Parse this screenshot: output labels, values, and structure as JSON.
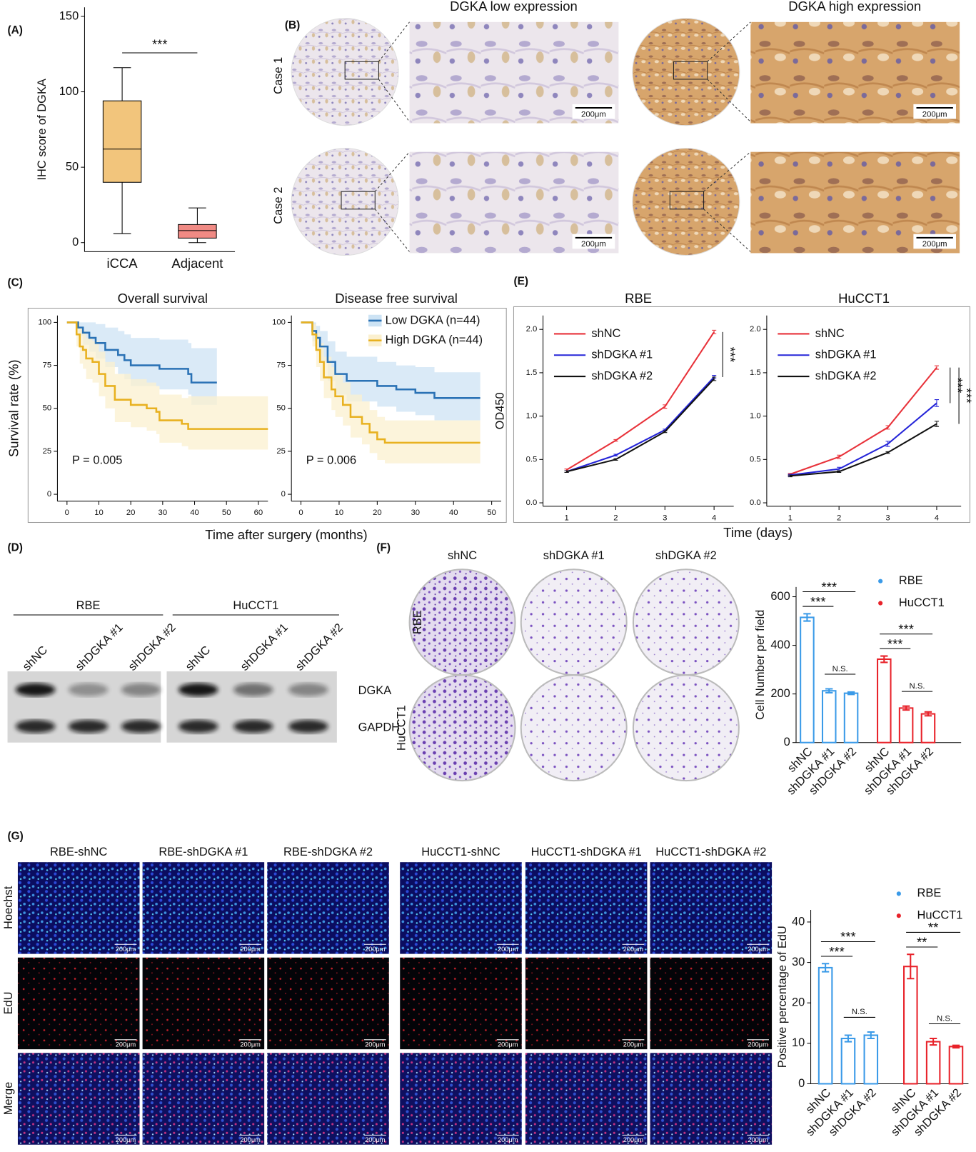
{
  "panel_labels": [
    "(A)",
    "(B)",
    "(C)",
    "(D)",
    "(E)",
    "(F)",
    "(G)"
  ],
  "ihc": {
    "columns": [
      "DGKA low expression",
      "DGKA high expression"
    ],
    "rows": [
      "Case 1",
      "Case 2"
    ],
    "scale_bar": "200μm"
  },
  "western": {
    "cell_lines": [
      "RBE",
      "HuCCT1"
    ],
    "lanes": [
      "shNC",
      "shDGKA #1",
      "shDGKA #2"
    ],
    "proteins": [
      "DGKA",
      "GAPDH"
    ]
  },
  "colony": {
    "columns": [
      "shNC",
      "shDGKA #1",
      "shDGKA #2"
    ],
    "rows": [
      "RBE",
      "HuCCT1"
    ]
  },
  "edu": {
    "columns": [
      "RBE-shNC",
      "RBE-shDGKA #1",
      "RBE-shDGKA #2",
      "HuCCT1-shNC",
      "HuCCT1-shDGKA #1",
      "HuCCT1-shDGKA #2"
    ],
    "rows": [
      "Hoechst",
      "EdU",
      "Merge"
    ],
    "scale_bar": "200μm"
  },
  "chart_data": [
    {
      "type": "box",
      "ylabel": "IHC score of DGKA",
      "categories": [
        "iCCA",
        "Adjacent"
      ],
      "min": [
        6,
        0
      ],
      "q1": [
        40,
        3
      ],
      "median": [
        62,
        8
      ],
      "q3": [
        94,
        12
      ],
      "max": [
        116,
        23
      ],
      "colors": [
        "#f2c57c",
        "#f08a84"
      ],
      "ylim": [
        -6,
        156
      ],
      "yticks": [
        0,
        50,
        100,
        150
      ],
      "significance": "***"
    },
    {
      "type": "km",
      "title": "Overall survival",
      "ylabel": "Survival rate (%)",
      "xlabel": "Time after surgery (months)",
      "annotation": "P = 0.005",
      "xlim": [
        -3,
        63
      ],
      "ylim": [
        -4,
        104
      ],
      "xticks": [
        0,
        10,
        20,
        30,
        40,
        50,
        60
      ],
      "yticks": [
        0,
        25,
        50,
        75,
        100
      ],
      "series": [
        {
          "color": "#2a72b5",
          "band_color": "#cde3f4",
          "x": [
            0,
            3.5,
            5,
            7,
            9,
            12,
            16,
            18,
            20,
            29,
            38,
            39,
            47
          ],
          "values": [
            100,
            97,
            94,
            91,
            88,
            84,
            81,
            78,
            75,
            73,
            70,
            65,
            65
          ],
          "upper": [
            100,
            100,
            100,
            100,
            99,
            97,
            95,
            93,
            91,
            90,
            88,
            85,
            85
          ],
          "lower": [
            100,
            92,
            87,
            83,
            79,
            74,
            70,
            67,
            63,
            61,
            58,
            52,
            52
          ]
        },
        {
          "color": "#e8b120",
          "band_color": "#fbf0cf",
          "x": [
            0,
            3,
            4,
            5,
            6,
            8,
            10,
            12,
            15,
            20,
            25,
            28,
            29,
            36,
            38,
            63
          ],
          "values": [
            100,
            93,
            86,
            84,
            79,
            77,
            70,
            63,
            55,
            52,
            50,
            48,
            43,
            41,
            38,
            38
          ],
          "upper": [
            100,
            100,
            97,
            95,
            91,
            89,
            83,
            77,
            70,
            67,
            65,
            63,
            58,
            56,
            57,
            57
          ],
          "lower": [
            100,
            86,
            76,
            73,
            67,
            65,
            57,
            50,
            42,
            39,
            37,
            35,
            30,
            28,
            26,
            26
          ]
        }
      ]
    },
    {
      "type": "km",
      "title": "Disease free survival",
      "annotation": "P = 0.006",
      "xlim": [
        -2.5,
        52.5
      ],
      "ylim": [
        -4,
        104
      ],
      "xticks": [
        0,
        10,
        20,
        30,
        40,
        50
      ],
      "yticks": [
        0,
        25,
        50,
        75,
        100
      ],
      "series": [
        {
          "name": "Low DGKA (n=44)",
          "color": "#2a72b5",
          "band_color": "#cde3f4",
          "x": [
            0,
            3,
            4,
            5,
            7,
            9,
            12,
            20,
            25,
            30,
            35,
            47
          ],
          "values": [
            100,
            95,
            91,
            86,
            77,
            70,
            66,
            63,
            61,
            59,
            56,
            56
          ],
          "upper": [
            100,
            100,
            98,
            95,
            89,
            83,
            80,
            77,
            75,
            74,
            71,
            71
          ],
          "lower": [
            100,
            89,
            84,
            77,
            66,
            58,
            54,
            51,
            48,
            46,
            43,
            43
          ]
        },
        {
          "name": "High DGKA (n=44)",
          "color": "#e8b120",
          "band_color": "#fbf0cf",
          "x": [
            0,
            3,
            4,
            5,
            6,
            8,
            9,
            11,
            13,
            16,
            18,
            20,
            22,
            47
          ],
          "values": [
            100,
            93,
            84,
            77,
            68,
            61,
            57,
            52,
            45,
            41,
            36,
            32,
            30,
            30
          ],
          "upper": [
            100,
            99,
            94,
            88,
            80,
            74,
            70,
            65,
            58,
            54,
            49,
            45,
            43,
            43
          ],
          "lower": [
            100,
            86,
            74,
            66,
            56,
            49,
            45,
            40,
            33,
            29,
            24,
            20,
            18,
            18
          ]
        }
      ]
    },
    {
      "type": "line",
      "title": "RBE",
      "ylabel": "OD450",
      "xlabel": "Time (days)",
      "x": [
        1,
        2,
        3,
        4
      ],
      "xlim": [
        0.52,
        4.4
      ],
      "ylim": [
        -0.04,
        2.16
      ],
      "xticks": [
        1,
        2,
        3,
        4
      ],
      "yticks": [
        {
          "value": 0,
          "label": "0.0"
        },
        0.5,
        {
          "value": 1,
          "label": "1.0"
        },
        1.5,
        {
          "value": 2,
          "label": "2.0"
        }
      ],
      "series": [
        {
          "name": "shNC",
          "color": "#e8323a",
          "values": [
            0.38,
            0.72,
            1.11,
            1.97
          ],
          "errors": [
            0.01,
            0.01,
            0.02,
            0.02
          ]
        },
        {
          "name": "shDGKA #1",
          "color": "#2424d8",
          "values": [
            0.36,
            0.55,
            0.84,
            1.45
          ],
          "errors": [
            0.01,
            0.01,
            0.01,
            0.02
          ]
        },
        {
          "name": "shDGKA #2",
          "color": "#111111",
          "values": [
            0.36,
            0.5,
            0.82,
            1.43
          ],
          "errors": [
            0.01,
            0.01,
            0.01,
            0.02
          ]
        }
      ],
      "significance": [
        "***"
      ]
    },
    {
      "type": "line",
      "title": "HuCCT1",
      "x": [
        1,
        2,
        3,
        4
      ],
      "xlim": [
        0.52,
        4.5
      ],
      "ylim": [
        -0.04,
        2.16
      ],
      "xticks": [
        1,
        2,
        3,
        4
      ],
      "yticks": [
        {
          "value": 0,
          "label": "0.0"
        },
        0.5,
        {
          "value": 1,
          "label": "1.0"
        },
        1.5,
        {
          "value": 2,
          "label": "2.0"
        }
      ],
      "series": [
        {
          "name": "shNC",
          "color": "#e8323a",
          "values": [
            0.33,
            0.53,
            0.87,
            1.56
          ],
          "errors": [
            0.01,
            0.02,
            0.02,
            0.02
          ]
        },
        {
          "name": "shDGKA #1",
          "color": "#2424d8",
          "values": [
            0.32,
            0.39,
            0.68,
            1.15
          ],
          "errors": [
            0.01,
            0.02,
            0.03,
            0.04
          ]
        },
        {
          "name": "shDGKA #2",
          "color": "#111111",
          "values": [
            0.31,
            0.36,
            0.58,
            0.91
          ],
          "errors": [
            0.01,
            0.01,
            0.01,
            0.03
          ]
        }
      ],
      "significance": [
        "***",
        "***"
      ]
    },
    {
      "type": "bar",
      "ylabel": "Cell Number per field",
      "categories": [
        "shNC",
        "shDGKA #1",
        "shDGKA #2"
      ],
      "ylim": [
        0,
        640
      ],
      "yticks": [
        0,
        200,
        400,
        600
      ],
      "series": [
        {
          "name": "RBE",
          "color": "#3a9ae8",
          "values": [
            515,
            213,
            203
          ],
          "errors": [
            15,
            8,
            5
          ]
        },
        {
          "name": "HuCCT1",
          "color": "#e8222a",
          "values": [
            343,
            142,
            118
          ],
          "errors": [
            13,
            8,
            8
          ]
        }
      ],
      "significance": [
        "***",
        "***",
        "N.S.",
        "***",
        "***",
        "N.S."
      ]
    },
    {
      "type": "bar",
      "ylabel": "Positive percentage of EdU",
      "categories": [
        "shNC",
        "shDGKA #1",
        "shDGKA #2"
      ],
      "ylim": [
        0,
        43
      ],
      "yticks": [
        0,
        10,
        20,
        30,
        40
      ],
      "series": [
        {
          "name": "RBE",
          "color": "#3a9ae8",
          "values": [
            28.7,
            11.2,
            12
          ],
          "errors": [
            1,
            0.8,
            0.8
          ]
        },
        {
          "name": "HuCCT1",
          "color": "#e8222a",
          "values": [
            29,
            10.4,
            9.2
          ],
          "errors": [
            3,
            0.8,
            0.3
          ]
        }
      ],
      "significance": [
        "***",
        "***",
        "N.S.",
        "**",
        "**",
        "N.S."
      ]
    }
  ]
}
